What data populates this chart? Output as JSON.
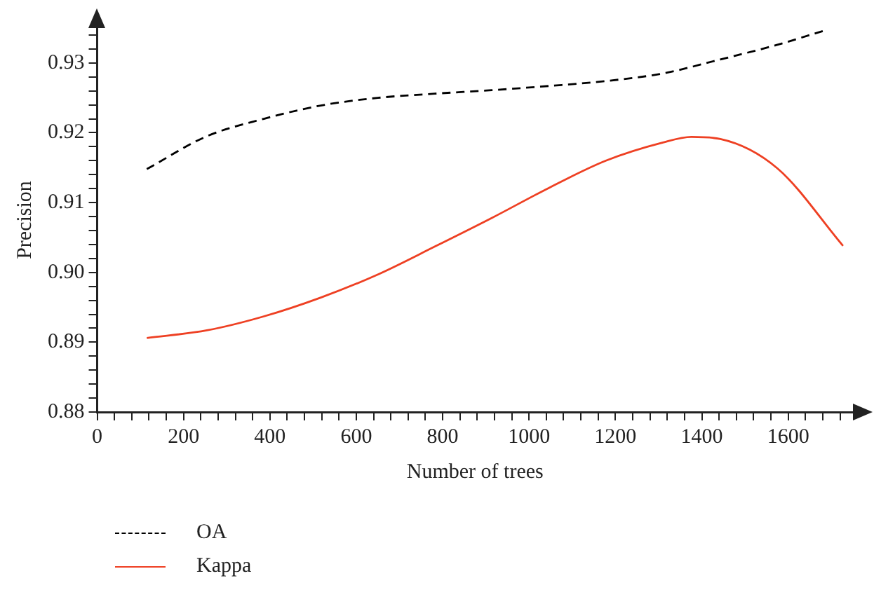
{
  "chart_data": {
    "type": "line",
    "xlabel": "Number of trees",
    "ylabel": "Precision",
    "xlim": [
      0,
      1750
    ],
    "ylim": [
      0.88,
      0.935
    ],
    "xticks": [
      0,
      {
        "value": 40,
        "label": null
      },
      {
        "value": 80,
        "label": null
      },
      {
        "value": 120,
        "label": null
      },
      {
        "value": 160,
        "label": null
      },
      200,
      {
        "value": 240,
        "label": null
      },
      {
        "value": 280,
        "label": null
      },
      {
        "value": 320,
        "label": null
      },
      {
        "value": 360,
        "label": null
      },
      400,
      {
        "value": 440,
        "label": null
      },
      {
        "value": 480,
        "label": null
      },
      {
        "value": 520,
        "label": null
      },
      {
        "value": 560,
        "label": null
      },
      600,
      {
        "value": 640,
        "label": null
      },
      {
        "value": 680,
        "label": null
      },
      {
        "value": 720,
        "label": null
      },
      {
        "value": 760,
        "label": null
      },
      800,
      {
        "value": 840,
        "label": null
      },
      {
        "value": 880,
        "label": null
      },
      {
        "value": 920,
        "label": null
      },
      {
        "value": 960,
        "label": null
      },
      1000,
      {
        "value": 1040,
        "label": null
      },
      {
        "value": 1080,
        "label": null
      },
      {
        "value": 1120,
        "label": null
      },
      {
        "value": 1160,
        "label": null
      },
      1200,
      {
        "value": 1240,
        "label": null
      },
      {
        "value": 1280,
        "label": null
      },
      {
        "value": 1320,
        "label": null
      },
      {
        "value": 1360,
        "label": null
      },
      1400,
      {
        "value": 1440,
        "label": null
      },
      {
        "value": 1480,
        "label": null
      },
      {
        "value": 1520,
        "label": null
      },
      {
        "value": 1560,
        "label": null
      },
      1600,
      {
        "value": 1640,
        "label": null
      },
      {
        "value": 1680,
        "label": null
      },
      {
        "value": 1720,
        "label": null
      }
    ],
    "yticks": [
      0.88,
      {
        "value": 0.882,
        "label": null
      },
      {
        "value": 0.884,
        "label": null
      },
      {
        "value": 0.886,
        "label": null
      },
      {
        "value": 0.888,
        "label": null
      },
      0.89,
      {
        "value": 0.892,
        "label": null
      },
      {
        "value": 0.894,
        "label": null
      },
      {
        "value": 0.896,
        "label": null
      },
      {
        "value": 0.898,
        "label": null
      },
      {
        "value": 0.9,
        "label": "0.90"
      },
      {
        "value": 0.902,
        "label": null
      },
      {
        "value": 0.904,
        "label": null
      },
      {
        "value": 0.906,
        "label": null
      },
      {
        "value": 0.908,
        "label": null
      },
      0.91,
      {
        "value": 0.912,
        "label": null
      },
      {
        "value": 0.914,
        "label": null
      },
      {
        "value": 0.916,
        "label": null
      },
      {
        "value": 0.918,
        "label": null
      },
      0.92,
      {
        "value": 0.922,
        "label": null
      },
      {
        "value": 0.924,
        "label": null
      },
      {
        "value": 0.926,
        "label": null
      },
      {
        "value": 0.928,
        "label": null
      },
      0.93,
      {
        "value": 0.932,
        "label": null
      },
      {
        "value": 0.934,
        "label": null
      }
    ],
    "grid": false,
    "legend": "bottom left",
    "marker": "none",
    "series": [
      {
        "name": "OA",
        "color": "#000000",
        "line_style": "dashed",
        "x": [
          115,
          254,
          386,
          518,
          650,
          782,
          914,
          1046,
          1178,
          1310,
          1443,
          1575,
          1687
        ],
        "values": [
          0.9148,
          0.9195,
          0.922,
          0.9239,
          0.925,
          0.9256,
          0.9261,
          0.9267,
          0.9274,
          0.9285,
          0.9305,
          0.9326,
          0.9347
        ]
      },
      {
        "name": "Kappa",
        "color": "#ee4023",
        "line_style": "solid",
        "x": [
          115,
          254,
          386,
          518,
          650,
          782,
          914,
          1046,
          1178,
          1310,
          1376,
          1443,
          1575,
          1727
        ],
        "values": [
          0.8906,
          0.8917,
          0.8937,
          0.8964,
          0.8997,
          0.9037,
          0.9078,
          0.9121,
          0.916,
          0.9186,
          0.9194,
          0.9191,
          0.9149,
          0.9038
        ]
      }
    ]
  }
}
